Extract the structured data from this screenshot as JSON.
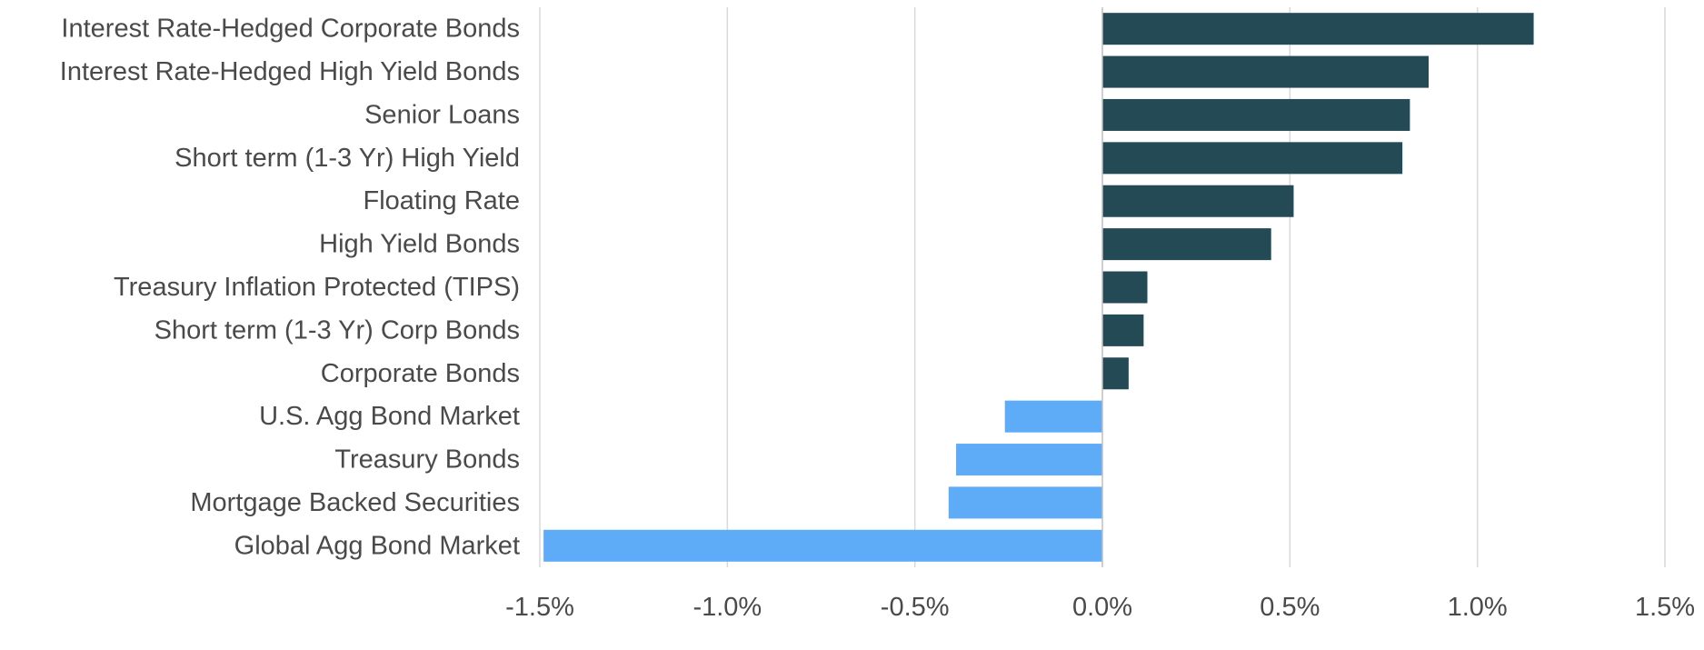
{
  "chart_data": {
    "type": "bar",
    "orientation": "horizontal",
    "title": "",
    "xlabel": "",
    "ylabel": "",
    "xlim": [
      -1.5,
      1.5
    ],
    "x_ticks": [
      -1.5,
      -1.0,
      -0.5,
      0.0,
      0.5,
      1.0,
      1.5
    ],
    "x_tick_labels": [
      "-1.5%",
      "-1.0%",
      "-0.5%",
      "0.0%",
      "0.5%",
      "1.0%",
      "1.5%"
    ],
    "grid": true,
    "legend": "none",
    "colors": {
      "positive": "#234a55",
      "negative": "#5eacf7"
    },
    "categories": [
      "Interest Rate-Hedged Corporate Bonds",
      "Interest Rate-Hedged High Yield Bonds",
      "Senior Loans",
      "Short term (1-3 Yr) High Yield",
      "Floating Rate",
      "High Yield Bonds",
      "Treasury Inflation Protected (TIPS)",
      "Short term (1-3 Yr) Corp Bonds",
      "Corporate Bonds",
      "U.S. Agg Bond Market",
      "Treasury Bonds",
      "Mortgage Backed Securities",
      "Global Agg Bond Market"
    ],
    "values": [
      1.15,
      0.87,
      0.82,
      0.8,
      0.51,
      0.45,
      0.12,
      0.11,
      0.07,
      -0.26,
      -0.39,
      -0.41,
      -1.49
    ]
  }
}
